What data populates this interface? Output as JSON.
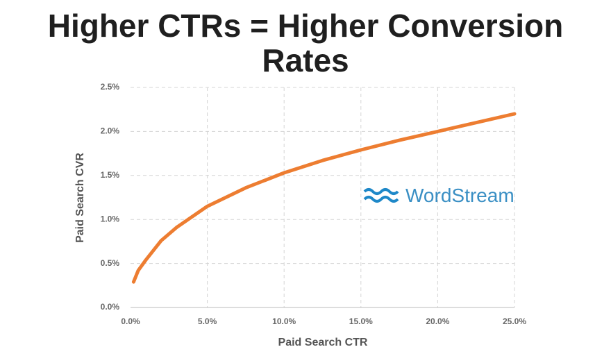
{
  "chart_data": {
    "type": "line",
    "title": "Higher CTRs = Higher Conversion Rates",
    "x_label": "Paid Search CTR",
    "y_label": "Paid Search CVR",
    "logo": "WordStream",
    "x": [
      0.2,
      0.5,
      1,
      2,
      3,
      5,
      7.5,
      10,
      12.5,
      15,
      17.5,
      20,
      22.5,
      25
    ],
    "values": [
      0.29,
      0.42,
      0.54,
      0.76,
      0.91,
      1.15,
      1.36,
      1.53,
      1.67,
      1.79,
      1.9,
      2.0,
      2.1,
      2.2
    ],
    "color": "#ed7d31",
    "xlim": [
      0,
      25
    ],
    "ylim": [
      0,
      2.5
    ],
    "xticks": [
      {
        "value": 0,
        "label": "0.0%"
      },
      {
        "value": 5,
        "label": "5.0%"
      },
      {
        "value": 10,
        "label": "10.0%"
      },
      {
        "value": 15,
        "label": "15.0%"
      },
      {
        "value": 20,
        "label": "20.0%"
      },
      {
        "value": 25,
        "label": "25.0%"
      }
    ],
    "yticks": [
      {
        "value": 0,
        "label": "0.0%"
      },
      {
        "value": 0.5,
        "label": "0.5%"
      },
      {
        "value": 1,
        "label": "1.0%"
      },
      {
        "value": 1.5,
        "label": "1.5%"
      },
      {
        "value": 2,
        "label": "2.0%"
      },
      {
        "value": 2.5,
        "label": "2.5%"
      }
    ],
    "grid": true
  }
}
